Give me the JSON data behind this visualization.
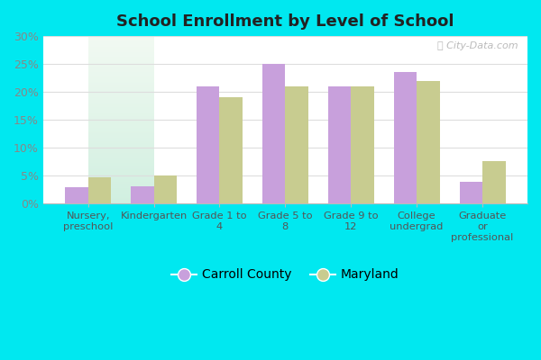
{
  "title": "School Enrollment by Level of School",
  "categories": [
    "Nursery,\npreschool",
    "Kindergarten",
    "Grade 1 to\n4",
    "Grade 5 to\n8",
    "Grade 9 to\n12",
    "College\nundergrad",
    "Graduate\nor\nprofessional"
  ],
  "carroll_county": [
    3.0,
    3.2,
    21.0,
    25.0,
    21.0,
    23.5,
    4.0
  ],
  "maryland": [
    4.8,
    5.0,
    19.0,
    21.0,
    21.0,
    22.0,
    7.7
  ],
  "carroll_color": "#c8a0dc",
  "maryland_color": "#c8cc90",
  "ylim": [
    0,
    30
  ],
  "yticks": [
    0,
    5,
    10,
    15,
    20,
    25,
    30
  ],
  "ytick_labels": [
    "0%",
    "5%",
    "10%",
    "15%",
    "20%",
    "25%",
    "30%"
  ],
  "outer_bg": "#00e8f0",
  "bar_width": 0.35,
  "legend_carroll": "Carroll County",
  "legend_maryland": "Maryland",
  "watermark": "City-Data.com",
  "title_color": "#222222",
  "tick_color": "#888888",
  "grid_color": "#dddddd"
}
